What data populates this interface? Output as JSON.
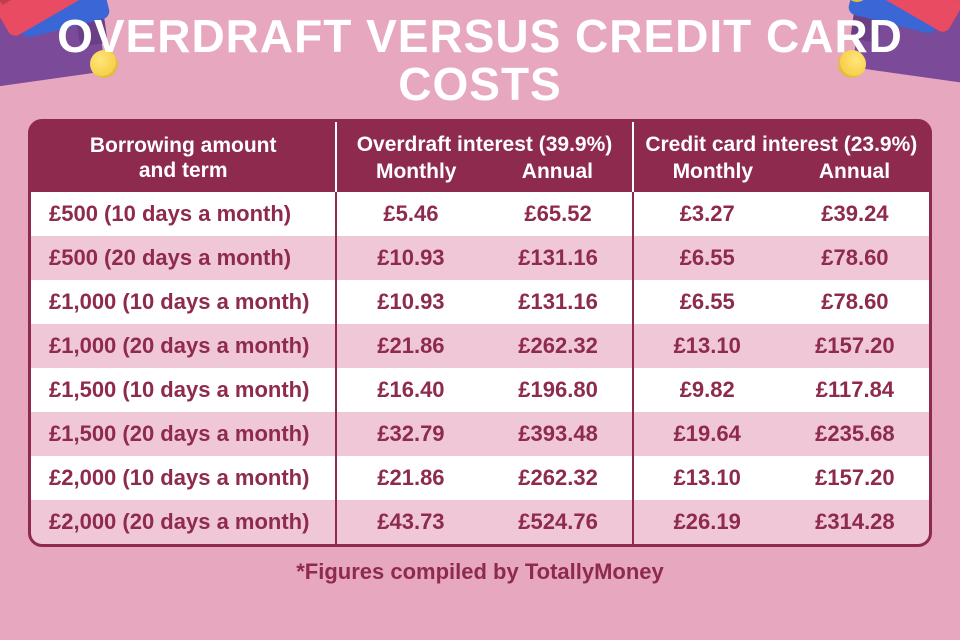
{
  "title": "OVERDRAFT VERSUS CREDIT CARD COSTS",
  "footnote": "*Figures compiled by TotallyMoney",
  "colors": {
    "background": "#e7a8bf",
    "title_color": "#ffffff",
    "table_border": "#8e2a4e",
    "header_bg": "#8e2a4e",
    "header_text": "#ffffff",
    "row_even_bg": "#ffffff",
    "row_odd_bg": "#f0c7d6",
    "cell_text": "#8e2a4e",
    "footnote_color": "#8e2a4e",
    "group_divider": "#ffffff",
    "body_divider": "#8e2a4e"
  },
  "header": {
    "term_label_line1": "Borrowing amount",
    "term_label_line2": "and term",
    "overdraft_label": "Overdraft interest (39.9%)",
    "creditcard_label": "Credit card interest (23.9%)",
    "sub_monthly": "Monthly",
    "sub_annual": "Annual"
  },
  "table": {
    "type": "table",
    "columns": [
      "term",
      "overdraft_monthly",
      "overdraft_annual",
      "cc_monthly",
      "cc_annual"
    ],
    "rows": [
      {
        "term": "£500 (10 days a month)",
        "om": "£5.46",
        "oa": "£65.52",
        "cm": "£3.27",
        "ca": "£39.24"
      },
      {
        "term": "£500 (20 days a month)",
        "om": "£10.93",
        "oa": "£131.16",
        "cm": "£6.55",
        "ca": "£78.60"
      },
      {
        "term": "£1,000 (10 days a month)",
        "om": "£10.93",
        "oa": "£131.16",
        "cm": "£6.55",
        "ca": "£78.60"
      },
      {
        "term": "£1,000 (20 days a month)",
        "om": "£21.86",
        "oa": "£262.32",
        "cm": "£13.10",
        "ca": "£157.20"
      },
      {
        "term": "£1,500 (10 days a month)",
        "om": "£16.40",
        "oa": "£196.80",
        "cm": "£9.82",
        "ca": "£117.84"
      },
      {
        "term": "£1,500 (20 days a month)",
        "om": "£32.79",
        "oa": "£393.48",
        "cm": "£19.64",
        "ca": "£235.68"
      },
      {
        "term": "£2,000 (10 days a month)",
        "om": "£21.86",
        "oa": "£262.32",
        "cm": "£13.10",
        "ca": "£157.20"
      },
      {
        "term": "£2,000 (20 days a month)",
        "om": "£43.73",
        "oa": "£524.76",
        "cm": "£26.19",
        "ca": "£314.28"
      }
    ]
  }
}
